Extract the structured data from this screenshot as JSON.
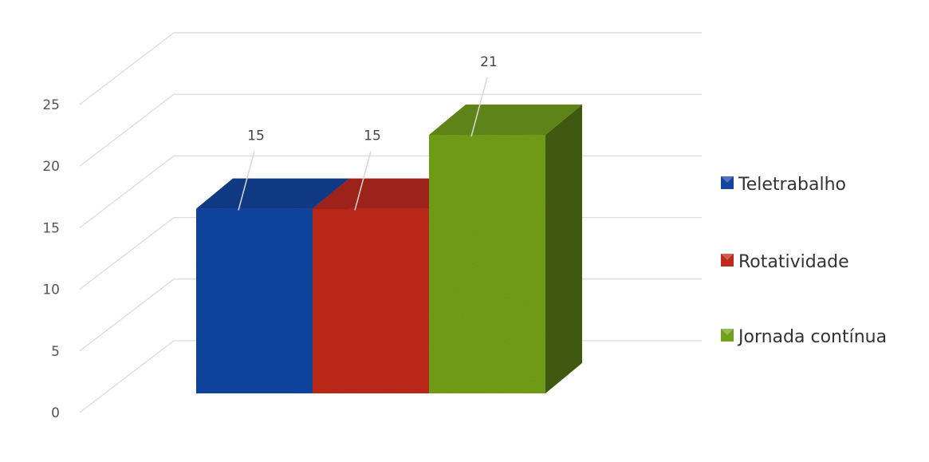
{
  "chart_data": {
    "type": "bar",
    "categories": [
      ""
    ],
    "series": [
      {
        "name": "Teletrabalho",
        "values": [
          15
        ],
        "color": "#1446a0"
      },
      {
        "name": "Rotatividade",
        "values": [
          15
        ],
        "color": "#bf2a1e"
      },
      {
        "name": "Jornada contínua",
        "values": [
          21
        ],
        "color": "#73a11e"
      }
    ],
    "title": "",
    "xlabel": "",
    "ylabel": "",
    "ylim": [
      0,
      25
    ],
    "yticks": [
      0,
      5,
      10,
      15,
      20,
      25
    ],
    "grid": true,
    "legend": "right",
    "style": "3d-column"
  }
}
